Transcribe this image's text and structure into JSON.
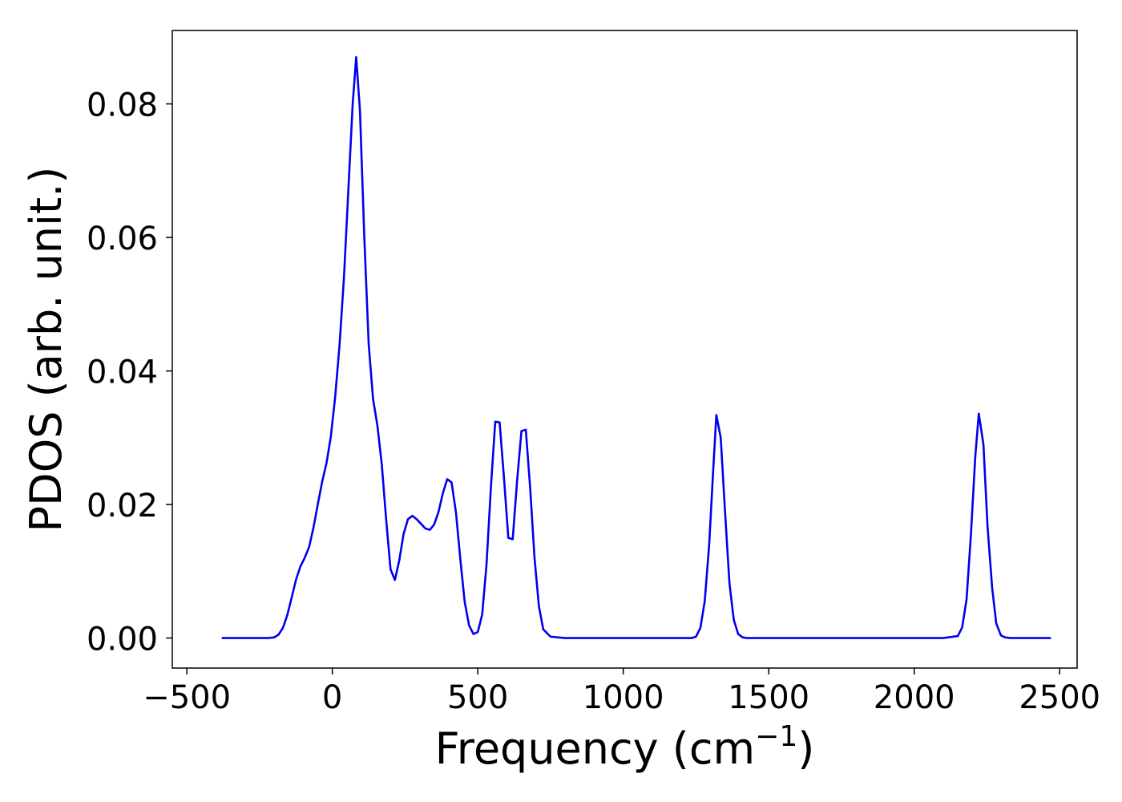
{
  "chart_data": {
    "type": "line",
    "title": "",
    "xlabel": "Frequency (cm",
    "xlabel_sup": "−1",
    "xlabel_close": ")",
    "ylabel": "PDOS (arb. unit.)",
    "xlim": [
      -550,
      2560
    ],
    "ylim": [
      -0.0045,
      0.091
    ],
    "x_ticks": [
      -500,
      0,
      500,
      1000,
      1500,
      2000,
      2500
    ],
    "x_tick_labels": [
      "−500",
      "0",
      "500",
      "1000",
      "1500",
      "2000",
      "2500"
    ],
    "y_ticks": [
      0.0,
      0.02,
      0.04,
      0.06,
      0.08
    ],
    "y_tick_labels": [
      "0.00",
      "0.02",
      "0.04",
      "0.06",
      "0.08"
    ],
    "grid": false,
    "legend": "none",
    "series": [
      {
        "color": "#0000ee",
        "x": [
          -380,
          -300,
          -220,
          -200,
          -185,
          -170,
          -155,
          -140,
          -125,
          -110,
          -95,
          -80,
          -65,
          -50,
          -35,
          -20,
          -5,
          10,
          25,
          40,
          55,
          70,
          82,
          95,
          110,
          125,
          140,
          155,
          170,
          185,
          200,
          215,
          230,
          245,
          260,
          275,
          290,
          305,
          320,
          335,
          350,
          365,
          380,
          395,
          410,
          425,
          440,
          455,
          470,
          485,
          500,
          515,
          530,
          545,
          560,
          575,
          590,
          605,
          620,
          635,
          650,
          665,
          680,
          695,
          710,
          725,
          750,
          800,
          900,
          1000,
          1100,
          1200,
          1235,
          1250,
          1265,
          1280,
          1295,
          1310,
          1320,
          1335,
          1350,
          1365,
          1380,
          1395,
          1410,
          1425,
          1500,
          1700,
          1900,
          2100,
          2150,
          2165,
          2180,
          2195,
          2210,
          2222,
          2238,
          2252,
          2268,
          2282,
          2298,
          2312,
          2330,
          2400,
          2470
        ],
        "y": [
          0.0,
          0.0,
          0.0,
          0.0001,
          0.0005,
          0.0015,
          0.0034,
          0.006,
          0.0087,
          0.0107,
          0.012,
          0.0136,
          0.0165,
          0.02,
          0.0234,
          0.0262,
          0.0302,
          0.0362,
          0.044,
          0.054,
          0.067,
          0.08,
          0.087,
          0.079,
          0.06,
          0.044,
          0.0358,
          0.0318,
          0.026,
          0.0178,
          0.0103,
          0.0087,
          0.0116,
          0.0156,
          0.0178,
          0.0183,
          0.0178,
          0.0171,
          0.0164,
          0.0162,
          0.017,
          0.0189,
          0.0217,
          0.0238,
          0.0233,
          0.0188,
          0.0118,
          0.0054,
          0.0019,
          0.0006,
          0.0009,
          0.0035,
          0.011,
          0.0225,
          0.0324,
          0.0323,
          0.024,
          0.015,
          0.0148,
          0.0235,
          0.031,
          0.0312,
          0.0225,
          0.012,
          0.0048,
          0.0013,
          0.0002,
          0.0,
          0.0,
          0.0,
          0.0,
          0.0,
          0.0,
          0.0002,
          0.0015,
          0.0055,
          0.0138,
          0.0258,
          0.0334,
          0.03,
          0.0188,
          0.0082,
          0.0027,
          0.0006,
          0.0001,
          0.0,
          0.0,
          0.0,
          0.0,
          0.0,
          0.0003,
          0.0016,
          0.0058,
          0.0155,
          0.0272,
          0.0336,
          0.029,
          0.0168,
          0.0075,
          0.0022,
          0.0004,
          0.0001,
          0.0,
          0.0,
          0.0
        ]
      }
    ]
  }
}
